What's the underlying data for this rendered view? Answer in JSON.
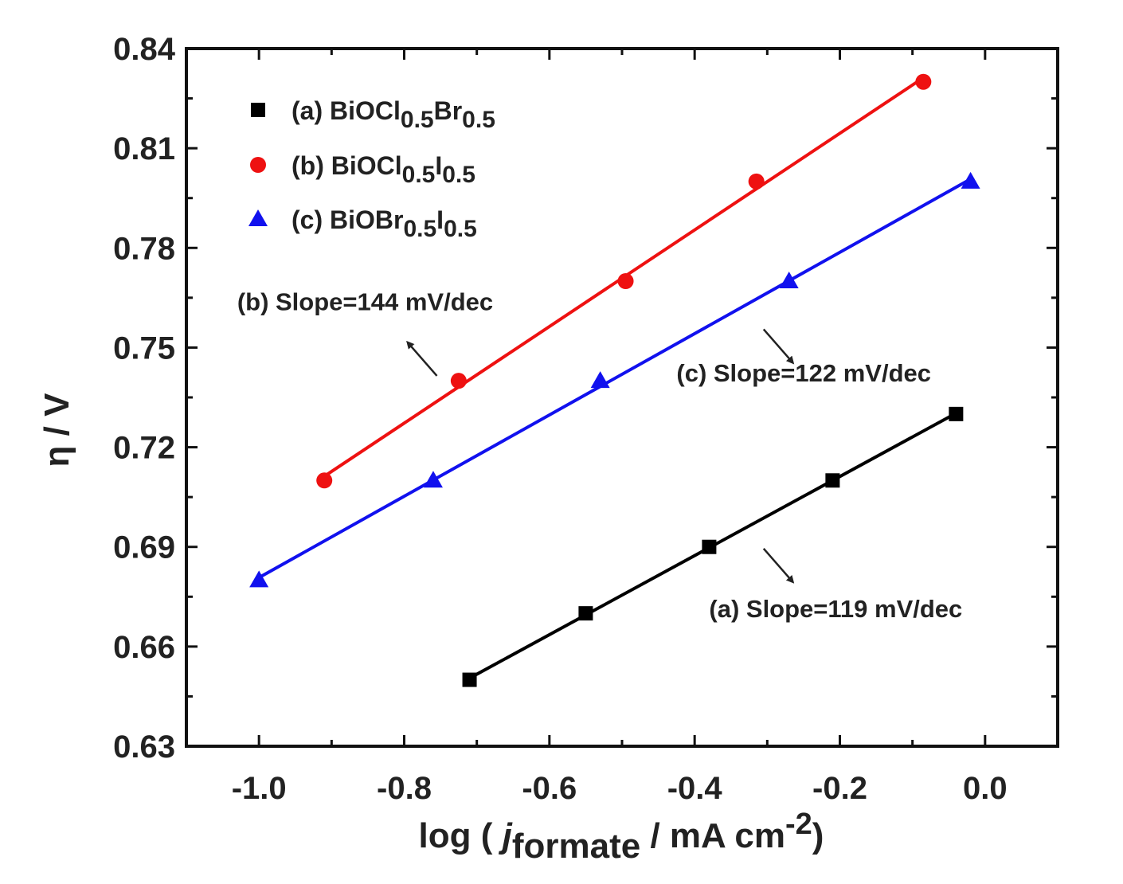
{
  "chart_data": {
    "type": "line",
    "xlabel": {
      "prefix": "log ( ",
      "italic": "j",
      "sub": "formate",
      "mid": " / mA cm",
      "sup": "-2",
      "suffix": ")"
    },
    "ylabel": "η / V",
    "xlim": [
      -1.1,
      0.1
    ],
    "ylim": [
      0.63,
      0.84
    ],
    "xticks": [
      -1.0,
      -0.8,
      -0.6,
      -0.4,
      -0.2,
      0.0
    ],
    "xtick_labels": [
      "-1.0",
      "-0.8",
      "-0.6",
      "-0.4",
      "-0.2",
      "0.0"
    ],
    "yticks": [
      0.63,
      0.66,
      0.69,
      0.72,
      0.75,
      0.78,
      0.81,
      0.84
    ],
    "ytick_labels": [
      "0.63",
      "0.66",
      "0.69",
      "0.72",
      "0.75",
      "0.78",
      "0.81",
      "0.84"
    ],
    "grid": false,
    "legend_position": "top-left",
    "series": [
      {
        "name": "(a) BiOCl0.5Br0.5",
        "legend": [
          {
            "t": "(a) BiOCl",
            "s": ""
          },
          {
            "t": "0.5",
            "s": "sub"
          },
          {
            "t": "Br",
            "s": ""
          },
          {
            "t": "0.5",
            "s": "sub"
          }
        ],
        "marker": "square",
        "color": "#000000",
        "x": [
          -0.71,
          -0.55,
          -0.38,
          -0.21,
          -0.04
        ],
        "y": [
          0.65,
          0.67,
          0.69,
          0.71,
          0.73
        ]
      },
      {
        "name": "(b) BiOCl0.5I0.5",
        "legend": [
          {
            "t": "(b) BiOCl",
            "s": ""
          },
          {
            "t": "0.5",
            "s": "sub"
          },
          {
            "t": "I",
            "s": ""
          },
          {
            "t": "0.5",
            "s": "sub"
          }
        ],
        "marker": "circle",
        "color": "#ee1111",
        "x": [
          -0.91,
          -0.725,
          -0.495,
          -0.315,
          -0.085
        ],
        "y": [
          0.71,
          0.74,
          0.77,
          0.8,
          0.83
        ]
      },
      {
        "name": "(c) BiOBr0.5I0.5",
        "legend": [
          {
            "t": "(c) BiOBr",
            "s": ""
          },
          {
            "t": "0.5",
            "s": "sub"
          },
          {
            "t": "I",
            "s": ""
          },
          {
            "t": "0.5",
            "s": "sub"
          }
        ],
        "marker": "triangle",
        "color": "#1111ee",
        "x": [
          -1.0,
          -0.76,
          -0.53,
          -0.27,
          -0.02
        ],
        "y": [
          0.68,
          0.71,
          0.74,
          0.77,
          0.8
        ]
      }
    ],
    "annotations": [
      {
        "id": "b",
        "text": "(b) Slope=144 mV/dec",
        "x": -1.03,
        "y": 0.7612,
        "arrow_from": [
          -0.755,
          0.7415
        ],
        "arrow_to": [
          -0.795,
          0.7515
        ]
      },
      {
        "id": "c",
        "text": "(c) Slope=122 mV/dec",
        "x": -0.425,
        "y": 0.7398,
        "arrow_from": [
          -0.305,
          0.7555
        ],
        "arrow_to": [
          -0.265,
          0.7455
        ]
      },
      {
        "id": "a",
        "text": "(a) Slope=119 mV/dec",
        "x": -0.38,
        "y": 0.6688,
        "arrow_from": [
          -0.305,
          0.6895
        ],
        "arrow_to": [
          -0.265,
          0.6795
        ]
      }
    ]
  }
}
